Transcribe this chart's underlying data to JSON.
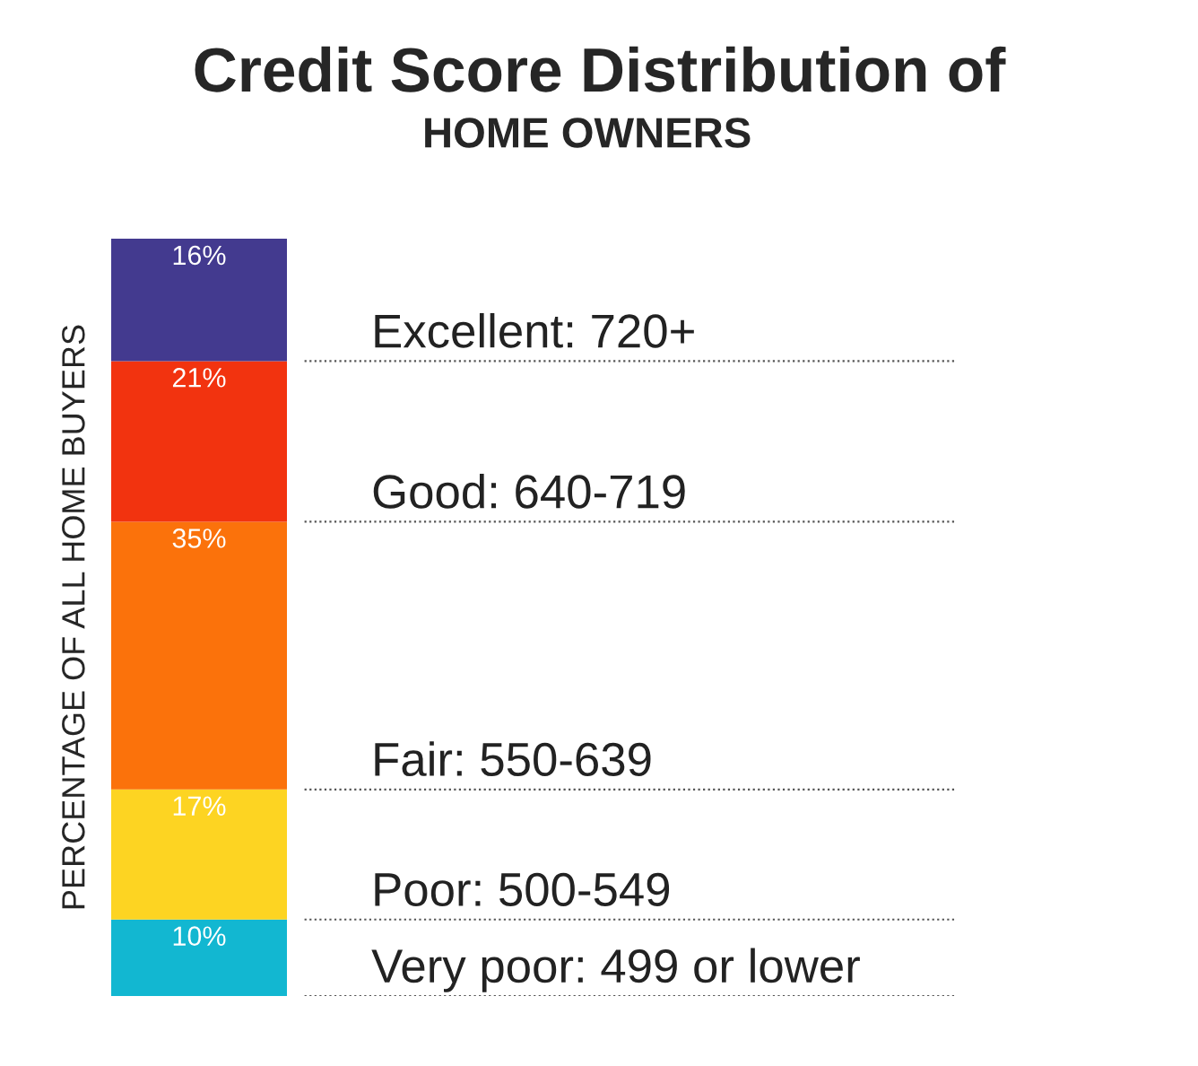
{
  "chart_data": {
    "type": "bar",
    "stacked": true,
    "title": "Credit Score Distribution of",
    "subtitle": "HOME OWNERS",
    "ylabel": "PERCENTAGE OF ALL HOME BUYERS",
    "categories": [
      null
    ],
    "series": [
      {
        "name": "Very poor: 499 or lower",
        "color": "#12b7d1",
        "values": [
          10
        ],
        "value_labels": [
          "10%"
        ]
      },
      {
        "name": "Poor: 500-549",
        "color": "#fdd422",
        "values": [
          17
        ],
        "value_labels": [
          "17%"
        ]
      },
      {
        "name": "Fair: 550-639",
        "color": "#fb720b",
        "values": [
          35
        ],
        "value_labels": [
          "35%"
        ]
      },
      {
        "name": "Good: 640-719",
        "color": "#f2330f",
        "values": [
          21
        ],
        "value_labels": [
          "21%"
        ]
      },
      {
        "name": "Excellent: 720+",
        "color": "#433a8f",
        "values": [
          16
        ],
        "value_labels": [
          "16%"
        ]
      }
    ]
  }
}
